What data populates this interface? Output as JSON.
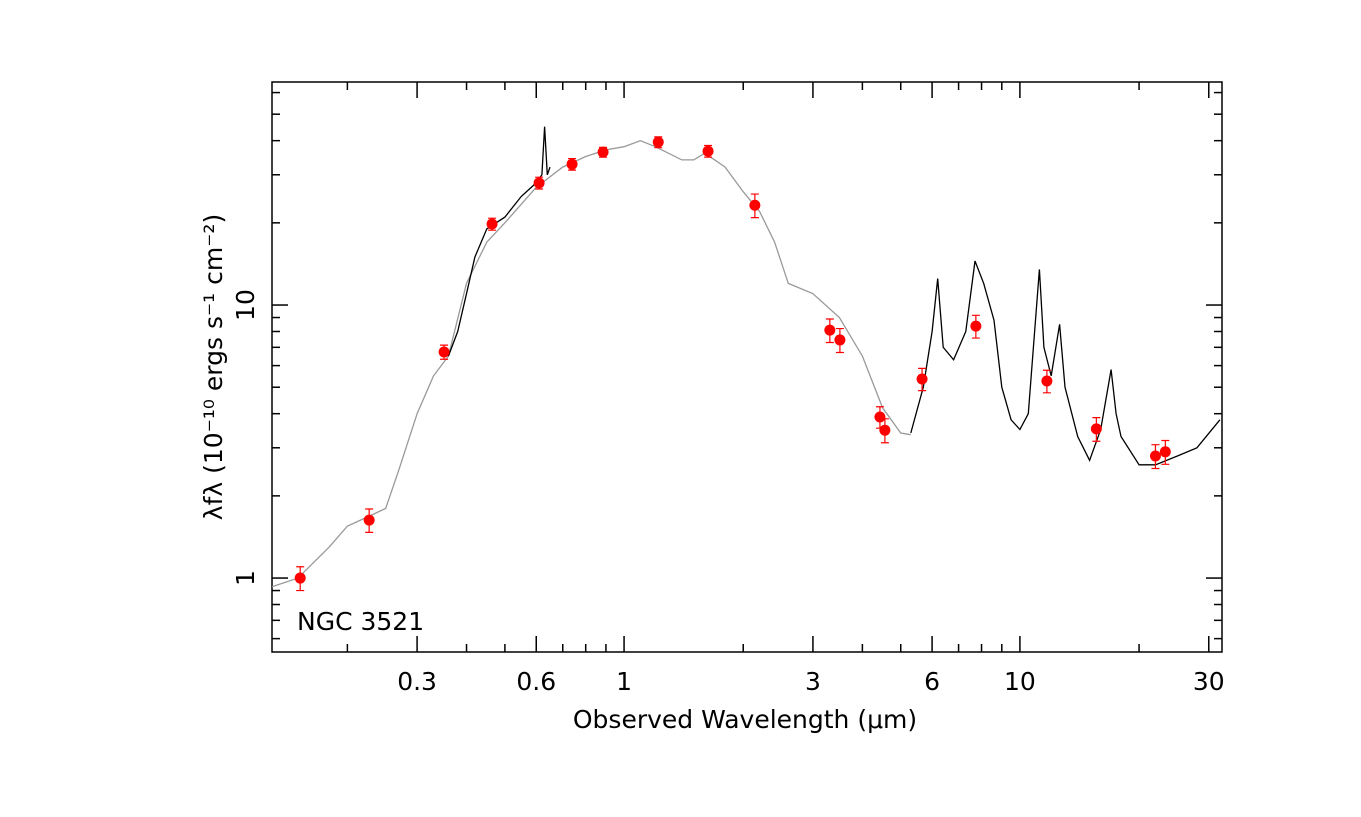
{
  "chart_data": {
    "type": "line",
    "xlabel": "Observed Wavelength (μm)",
    "ylabel": "λfλ (10⁻¹⁰ ergs s⁻¹ cm⁻²)",
    "annotation": "NGC 3521",
    "xscale": "log",
    "yscale": "log",
    "xlim": [
      0.129,
      32.4
    ],
    "ylim": [
      0.536,
      65.6
    ],
    "xticks": [
      0.3,
      0.6,
      1,
      3,
      6,
      10,
      30
    ],
    "yticks": [
      1,
      10
    ],
    "xminorticks": [
      0.2,
      0.4,
      0.5,
      0.7,
      0.8,
      0.9,
      2,
      4,
      5,
      7,
      8,
      9,
      20
    ],
    "yminorticks": [
      0.6,
      0.7,
      0.8,
      0.9,
      2,
      3,
      4,
      5,
      6,
      7,
      8,
      9,
      20,
      30,
      40,
      50,
      60
    ],
    "series": [
      {
        "type": "line",
        "color": "#999999",
        "x": [
          0.129,
          0.15,
          0.18,
          0.2,
          0.23,
          0.25,
          0.27,
          0.3,
          0.33,
          0.36,
          0.4,
          0.45,
          0.5,
          0.6,
          0.7,
          0.8,
          0.9,
          1.0,
          1.1,
          1.2,
          1.4,
          1.5,
          1.6,
          1.8,
          2.0,
          2.2,
          2.4,
          2.6,
          3.0,
          3.5,
          4.0,
          4.5,
          5.0,
          5.3
        ],
        "values": [
          0.93,
          1.0,
          1.3,
          1.55,
          1.7,
          1.8,
          2.5,
          4.0,
          5.5,
          6.5,
          12,
          17,
          20,
          27,
          32,
          35,
          37,
          38,
          40,
          38,
          34,
          34,
          36,
          32,
          26,
          22,
          17,
          12,
          11,
          9,
          6.5,
          4.2,
          3.4,
          3.35
        ]
      },
      {
        "type": "line",
        "color": "#000000",
        "x": [
          0.36,
          0.38,
          0.4,
          0.42,
          0.45,
          0.5,
          0.55,
          0.6,
          0.62,
          0.63,
          0.64,
          0.65,
          1.0,
          5.3,
          5.7,
          6.0,
          6.2,
          6.4,
          6.8,
          7.3,
          7.7,
          8.1,
          8.6,
          9.0,
          9.5,
          10,
          10.5,
          11.2,
          11.5,
          12,
          12.6,
          13,
          14,
          15,
          16,
          17,
          17.5,
          18,
          20,
          22,
          25,
          28,
          32
        ],
        "values": [
          6.5,
          8,
          11,
          15,
          19,
          21,
          25,
          28,
          30,
          45,
          30,
          32,
          null,
          3.4,
          5,
          8,
          12.5,
          7,
          6.3,
          8,
          14.5,
          12,
          8.8,
          5,
          3.8,
          3.5,
          4,
          13.5,
          7,
          5.5,
          8.5,
          5,
          3.3,
          2.7,
          3.5,
          5.8,
          4,
          3.3,
          2.6,
          2.6,
          2.8,
          3.0,
          3.8
        ]
      },
      {
        "type": "scatter",
        "color": "#ff0000",
        "x": [
          0.152,
          0.227,
          0.351,
          0.464,
          0.61,
          0.739,
          0.885,
          1.22,
          1.63,
          2.14,
          3.31,
          3.51,
          4.43,
          4.56,
          5.66,
          7.74,
          11.7,
          15.6,
          22.0,
          23.3
        ],
        "values": [
          1.0,
          1.63,
          6.73,
          19.8,
          28.0,
          32.8,
          36.3,
          39.5,
          36.6,
          23.2,
          8.09,
          7.45,
          3.89,
          3.48,
          5.36,
          8.37,
          5.27,
          3.52,
          2.8,
          2.9
        ],
        "errors": [
          0.1,
          0.16,
          0.4,
          1.0,
          1.4,
          1.6,
          1.5,
          1.8,
          1.8,
          2.3,
          0.8,
          0.75,
          0.35,
          0.35,
          0.5,
          0.8,
          0.5,
          0.35,
          0.28,
          0.29
        ]
      }
    ]
  }
}
